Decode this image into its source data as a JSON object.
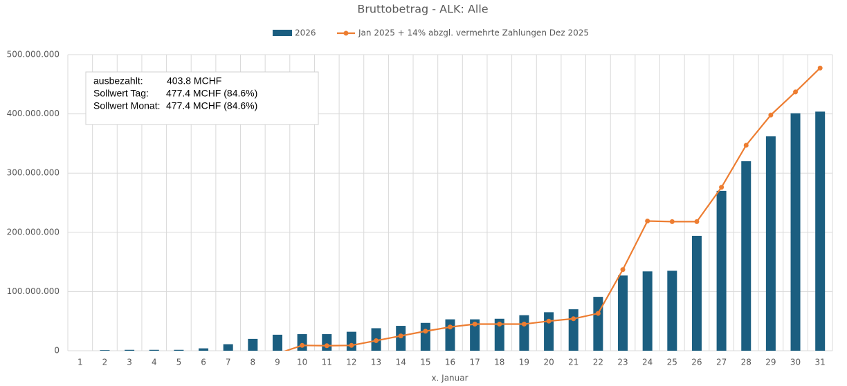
{
  "chart_data": {
    "type": "bar-line",
    "title": "Bruttobetrag - ALK: Alle",
    "x_label": "x. Januar",
    "categories": [
      "1",
      "2",
      "3",
      "4",
      "5",
      "6",
      "7",
      "8",
      "9",
      "10",
      "11",
      "12",
      "13",
      "14",
      "15",
      "16",
      "17",
      "18",
      "19",
      "20",
      "21",
      "22",
      "23",
      "24",
      "25",
      "26",
      "27",
      "28",
      "29",
      "30",
      "31"
    ],
    "series": [
      {
        "name": "2026",
        "type": "bar",
        "color": "#1b5e80",
        "values": [
          0,
          1000000,
          1500000,
          1500000,
          1500000,
          4000000,
          11000000,
          20000000,
          27000000,
          28000000,
          28000000,
          32000000,
          38000000,
          42000000,
          47000000,
          53000000,
          53000000,
          54000000,
          60000000,
          65000000,
          70000000,
          91000000,
          127000000,
          134000000,
          135000000,
          194000000,
          270000000,
          320000000,
          362000000,
          401000000,
          403800000
        ]
      },
      {
        "name": "Jan 2025 + 14% abzgl. vermehrte Zahlungen Dez 2025",
        "type": "line",
        "color": "#ed7d31",
        "values": [
          null,
          null,
          null,
          null,
          null,
          null,
          null,
          null,
          -5000000,
          9000000,
          8500000,
          9000000,
          17000000,
          25000000,
          33000000,
          40000000,
          45000000,
          45000000,
          45000000,
          50000000,
          54000000,
          63000000,
          137000000,
          219000000,
          218000000,
          218000000,
          276000000,
          347000000,
          398000000,
          437000000,
          477400000
        ]
      }
    ],
    "ylim": [
      0,
      500000000
    ],
    "yticks": [
      0,
      {
        "value": 100000000,
        "label": "100.000.000"
      },
      {
        "value": 200000000,
        "label": "200.000.000"
      },
      {
        "value": 300000000,
        "label": "300.000.000"
      },
      {
        "value": 400000000,
        "label": "400.000.000"
      },
      {
        "value": 500000000,
        "label": "500.000.000"
      }
    ],
    "grid": true,
    "annotation": [
      {
        "label": "ausbezahlt:",
        "value": "403.8 MCHF"
      },
      {
        "label": "Sollwert Tag:",
        "value": "477.4 MCHF (84.6%)"
      },
      {
        "label": "Sollwert Monat:",
        "value": "477.4 MCHF (84.6%)"
      }
    ]
  }
}
